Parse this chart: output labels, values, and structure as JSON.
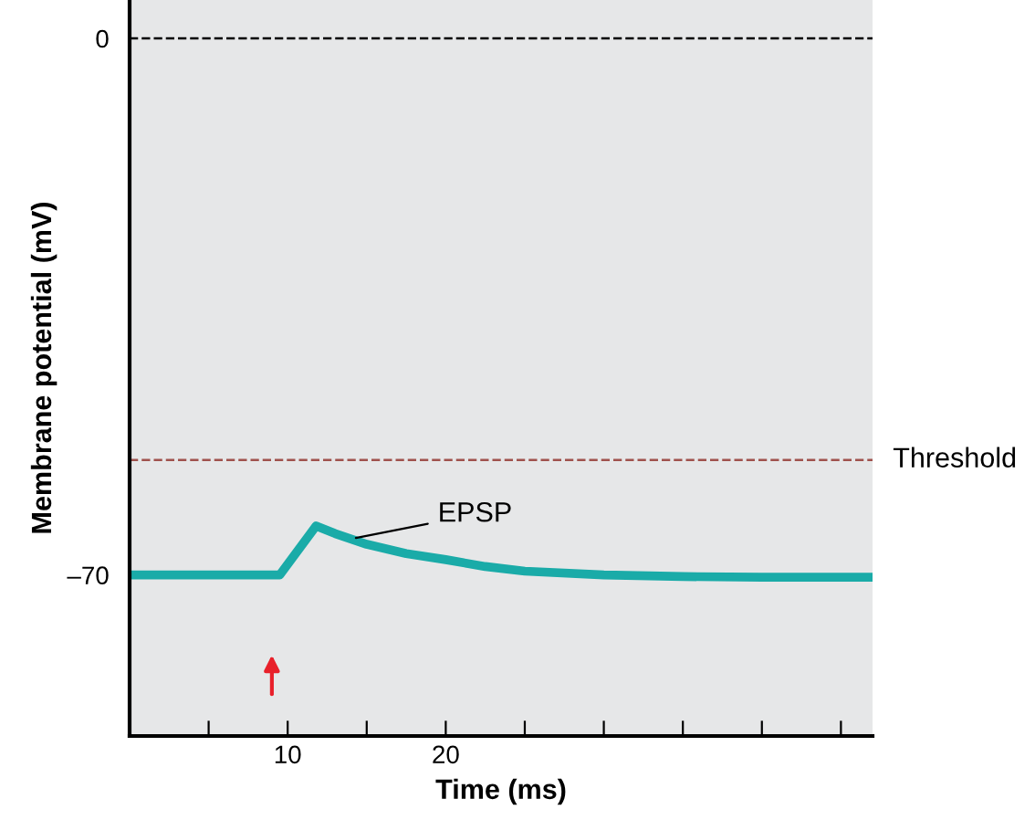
{
  "chart_data": {
    "type": "line",
    "xlabel": "Time (ms)",
    "ylabel": "Membrane potential (mV)",
    "x": [
      0,
      9.5,
      11.8,
      13,
      15,
      17.5,
      20,
      22.5,
      25,
      30,
      35,
      40,
      47
    ],
    "series": [
      {
        "color": "#1aaba8",
        "values": [
          -70,
          -70,
          -63.6,
          -64.6,
          -66,
          -67.2,
          -68,
          -68.9,
          -69.5,
          -70,
          -70.2,
          -70.3,
          -70.3
        ]
      }
    ],
    "xlim": [
      0,
      47
    ],
    "ylim": [
      -91,
      5
    ],
    "xticks": [
      {
        "value": 5,
        "label": null
      },
      10,
      {
        "value": 15,
        "label": null
      },
      20,
      {
        "value": 25,
        "label": null
      },
      {
        "value": 30,
        "label": null
      },
      {
        "value": 35,
        "label": null
      },
      {
        "value": 40,
        "label": null
      },
      {
        "value": 45,
        "label": null
      }
    ],
    "yticks": [
      0,
      {
        "value": -70,
        "label": "–70"
      }
    ],
    "ref_lines": [
      {
        "axis": "y",
        "value": 0,
        "label": null,
        "color": "#000000",
        "line_style": "dashed"
      },
      {
        "axis": "y",
        "value": -55,
        "label": "Threshold",
        "color": "#a0524d",
        "line_style": "dashed"
      }
    ],
    "annotations": [
      {
        "text": "EPSP",
        "x": 14,
        "y": -65.3
      }
    ],
    "grid": false,
    "legend": false,
    "marker": "none",
    "line_style": "solid"
  }
}
